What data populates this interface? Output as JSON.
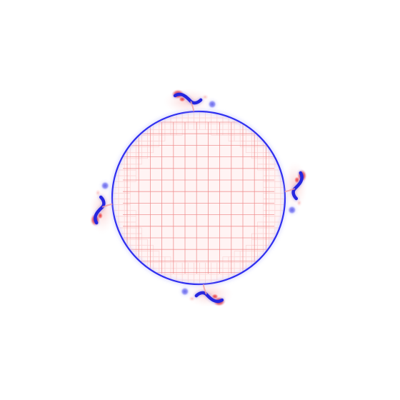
{
  "figure": {
    "background": "#ffffff",
    "interface_color": "#2f2ff0",
    "grid_color": "#f08a8a",
    "fine_grid_color": "#fbd6d6",
    "positive_vorticity_color": "#e01010",
    "negative_vorticity_color": "#1010d8",
    "interior_tint": "#fff4f4"
  }
}
